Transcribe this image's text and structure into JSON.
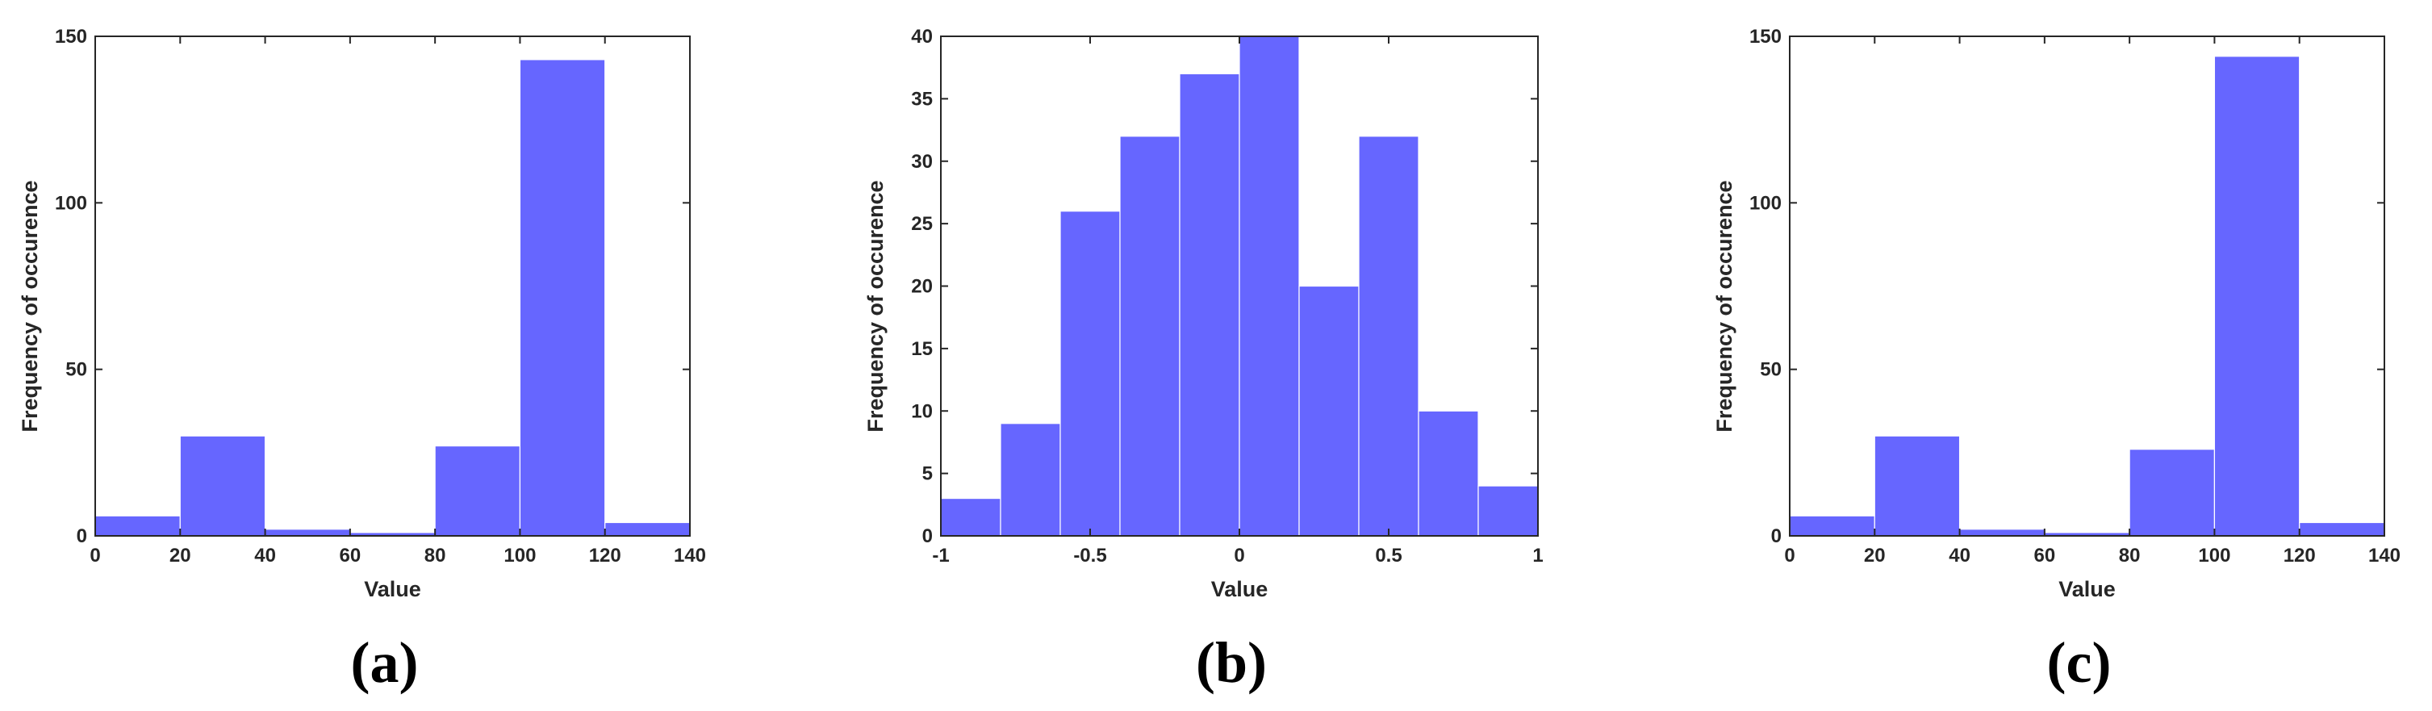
{
  "chart_data": [
    {
      "type": "bar",
      "panel_label": "(a)",
      "xlabel": "Value",
      "ylabel": "Frequency  of occurence",
      "xlim": [
        0,
        140
      ],
      "ylim": [
        0,
        150
      ],
      "xticks": [
        0,
        20,
        40,
        60,
        80,
        100,
        120,
        140
      ],
      "xtick_labels": [
        "0",
        "20",
        "40",
        "60",
        "80",
        "100",
        "120",
        "140"
      ],
      "yticks": [
        0,
        50,
        100,
        150
      ],
      "ytick_labels": [
        "0",
        "50",
        "100",
        "150"
      ],
      "bin_edges": [
        0,
        20,
        40,
        60,
        80,
        100,
        120,
        140
      ],
      "values": [
        6,
        30,
        2,
        1,
        27,
        143,
        4
      ],
      "bar_color": "#6666ff",
      "grid": false
    },
    {
      "type": "bar",
      "panel_label": "(b)",
      "xlabel": "Value",
      "ylabel": "Frequency  of occurence",
      "xlim": [
        -1,
        1
      ],
      "ylim": [
        0,
        40
      ],
      "xticks": [
        -1,
        -0.5,
        0,
        0.5,
        1
      ],
      "xtick_labels": [
        "-1",
        "-0.5",
        "0",
        "0.5",
        "1"
      ],
      "yticks": [
        0,
        5,
        10,
        15,
        20,
        25,
        30,
        35,
        40
      ],
      "ytick_labels": [
        "0",
        "5",
        "10",
        "15",
        "20",
        "25",
        "30",
        "35",
        "40"
      ],
      "bin_edges": [
        -1,
        -0.8,
        -0.6,
        -0.4,
        -0.2,
        0,
        0.2,
        0.4,
        0.6,
        0.8,
        1
      ],
      "values": [
        3,
        9,
        26,
        32,
        37,
        40,
        20,
        32,
        10,
        4
      ],
      "bar_color": "#6666ff",
      "grid": false
    },
    {
      "type": "bar",
      "panel_label": "(c)",
      "xlabel": "Value",
      "ylabel": "Frequency  of occurence",
      "xlim": [
        0,
        140
      ],
      "ylim": [
        0,
        150
      ],
      "xticks": [
        0,
        20,
        40,
        60,
        80,
        100,
        120,
        140
      ],
      "xtick_labels": [
        "0",
        "20",
        "40",
        "60",
        "80",
        "100",
        "120",
        "140"
      ],
      "yticks": [
        0,
        50,
        100,
        150
      ],
      "ytick_labels": [
        "0",
        "50",
        "100",
        "150"
      ],
      "bin_edges": [
        0,
        20,
        40,
        60,
        80,
        100,
        120,
        140
      ],
      "values": [
        6,
        30,
        2,
        1,
        26,
        144,
        4
      ],
      "bar_color": "#6666ff",
      "grid": false
    }
  ]
}
